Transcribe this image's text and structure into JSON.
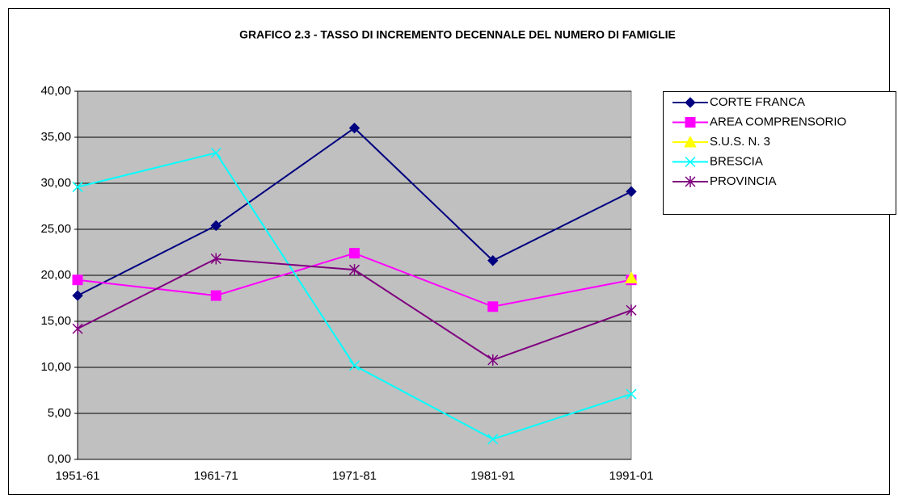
{
  "chart_data": {
    "type": "line",
    "title": "GRAFICO 2.3 - TASSO DI INCREMENTO DECENNALE DEL NUMERO DI FAMIGLIE",
    "categories": [
      "1951-61",
      "1961-71",
      "1971-81",
      "1981-91",
      "1991-01"
    ],
    "series": [
      {
        "name": "CORTE FRANCA",
        "color": "#000080",
        "marker": "diamond",
        "values": [
          17.8,
          25.4,
          36.0,
          21.6,
          29.1
        ]
      },
      {
        "name": "AREA COMPRENSORIO",
        "color": "#ff00ff",
        "marker": "square",
        "values": [
          19.5,
          17.8,
          22.4,
          16.6,
          19.5
        ]
      },
      {
        "name": "S.U.S. N. 3",
        "color": "#ffff00",
        "marker": "triangle",
        "values": [
          null,
          null,
          null,
          null,
          19.7
        ]
      },
      {
        "name": "BRESCIA",
        "color": "#00ffff",
        "marker": "x",
        "values": [
          29.6,
          33.3,
          10.2,
          2.2,
          7.1
        ]
      },
      {
        "name": "PROVINCIA",
        "color": "#800080",
        "marker": "star",
        "values": [
          14.2,
          21.8,
          20.6,
          10.8,
          16.2
        ]
      }
    ],
    "ylim": [
      0,
      40
    ],
    "yticks": [
      {
        "value": 0,
        "label": "0,00"
      },
      {
        "value": 5,
        "label": "5,00"
      },
      {
        "value": 10,
        "label": "10,00"
      },
      {
        "value": 15,
        "label": "15,00"
      },
      {
        "value": 20,
        "label": "20,00"
      },
      {
        "value": 25,
        "label": "25,00"
      },
      {
        "value": 30,
        "label": "30,00"
      },
      {
        "value": 35,
        "label": "35,00"
      },
      {
        "value": 40,
        "label": "40,00"
      }
    ],
    "grid": true,
    "legend": "right",
    "plot_background": "#c0c0c0"
  }
}
